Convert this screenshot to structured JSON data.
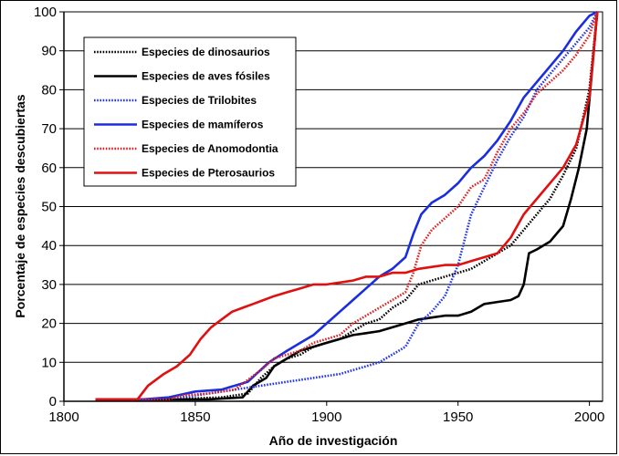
{
  "chart_data": {
    "type": "line",
    "title": "",
    "xlabel": "Año de investigación",
    "ylabel": "Porcentaje de especies descubiertas",
    "xlim": [
      1800,
      2005
    ],
    "ylim": [
      0,
      100
    ],
    "x_ticks": [
      1800,
      1850,
      1900,
      1950,
      2000
    ],
    "y_ticks": [
      0,
      10,
      20,
      30,
      40,
      50,
      60,
      70,
      80,
      90,
      100
    ],
    "grid": "horizontal",
    "legend_position": "top-left",
    "series": [
      {
        "name": "Especies de dinosaurios",
        "color": "#000000",
        "style": "dotted",
        "points": [
          [
            1812,
            0.5
          ],
          [
            1840,
            0.5
          ],
          [
            1860,
            1
          ],
          [
            1870,
            2
          ],
          [
            1875,
            6
          ],
          [
            1880,
            9
          ],
          [
            1885,
            11
          ],
          [
            1890,
            12
          ],
          [
            1895,
            14
          ],
          [
            1900,
            15
          ],
          [
            1905,
            16
          ],
          [
            1910,
            18
          ],
          [
            1915,
            20
          ],
          [
            1920,
            21
          ],
          [
            1925,
            24
          ],
          [
            1930,
            26
          ],
          [
            1935,
            30
          ],
          [
            1940,
            31
          ],
          [
            1945,
            32
          ],
          [
            1950,
            33
          ],
          [
            1955,
            34
          ],
          [
            1960,
            36
          ],
          [
            1965,
            38
          ],
          [
            1970,
            40
          ],
          [
            1975,
            44
          ],
          [
            1980,
            48
          ],
          [
            1985,
            52
          ],
          [
            1990,
            58
          ],
          [
            1995,
            65
          ],
          [
            2000,
            80
          ],
          [
            2003,
            100
          ]
        ]
      },
      {
        "name": "Especies de aves fósiles",
        "color": "#000000",
        "style": "solid",
        "points": [
          [
            1812,
            0.5
          ],
          [
            1840,
            0.5
          ],
          [
            1855,
            0.5
          ],
          [
            1868,
            1
          ],
          [
            1872,
            4
          ],
          [
            1877,
            6
          ],
          [
            1880,
            9
          ],
          [
            1885,
            11
          ],
          [
            1890,
            13
          ],
          [
            1895,
            14
          ],
          [
            1900,
            15
          ],
          [
            1905,
            16
          ],
          [
            1910,
            17
          ],
          [
            1915,
            17.5
          ],
          [
            1920,
            18
          ],
          [
            1925,
            19
          ],
          [
            1930,
            20
          ],
          [
            1935,
            21
          ],
          [
            1940,
            21.5
          ],
          [
            1945,
            22
          ],
          [
            1950,
            22
          ],
          [
            1955,
            23
          ],
          [
            1960,
            25
          ],
          [
            1965,
            25.5
          ],
          [
            1970,
            26
          ],
          [
            1973,
            27
          ],
          [
            1975,
            30
          ],
          [
            1977,
            38
          ],
          [
            1980,
            39
          ],
          [
            1985,
            41
          ],
          [
            1990,
            45
          ],
          [
            1993,
            52
          ],
          [
            1996,
            60
          ],
          [
            1999,
            70
          ],
          [
            2001,
            85
          ],
          [
            2003,
            100
          ]
        ]
      },
      {
        "name": "Especies de Trilobites",
        "color": "#2233ee",
        "style": "dotted",
        "points": [
          [
            1812,
            0.5
          ],
          [
            1835,
            0.5
          ],
          [
            1845,
            1
          ],
          [
            1855,
            2
          ],
          [
            1865,
            3
          ],
          [
            1875,
            4
          ],
          [
            1885,
            5
          ],
          [
            1895,
            6
          ],
          [
            1905,
            7
          ],
          [
            1915,
            9
          ],
          [
            1920,
            10
          ],
          [
            1925,
            12
          ],
          [
            1930,
            14
          ],
          [
            1935,
            20
          ],
          [
            1940,
            23
          ],
          [
            1945,
            27
          ],
          [
            1950,
            35
          ],
          [
            1955,
            48
          ],
          [
            1960,
            55
          ],
          [
            1965,
            62
          ],
          [
            1970,
            68
          ],
          [
            1975,
            73
          ],
          [
            1980,
            80
          ],
          [
            1985,
            84
          ],
          [
            1990,
            88
          ],
          [
            1995,
            92
          ],
          [
            2000,
            96
          ],
          [
            2003,
            100
          ]
        ]
      },
      {
        "name": "Especies de mamíferos",
        "color": "#1a2ee0",
        "style": "solid",
        "points": [
          [
            1812,
            0.5
          ],
          [
            1830,
            0.5
          ],
          [
            1840,
            1
          ],
          [
            1850,
            2.5
          ],
          [
            1860,
            3
          ],
          [
            1870,
            5
          ],
          [
            1878,
            10
          ],
          [
            1885,
            13
          ],
          [
            1890,
            15
          ],
          [
            1895,
            17
          ],
          [
            1900,
            20
          ],
          [
            1905,
            23
          ],
          [
            1910,
            26
          ],
          [
            1915,
            29
          ],
          [
            1920,
            32
          ],
          [
            1925,
            34
          ],
          [
            1930,
            37
          ],
          [
            1933,
            43
          ],
          [
            1936,
            48
          ],
          [
            1940,
            51
          ],
          [
            1945,
            53
          ],
          [
            1950,
            56
          ],
          [
            1955,
            60
          ],
          [
            1960,
            63
          ],
          [
            1965,
            67
          ],
          [
            1970,
            72
          ],
          [
            1975,
            78
          ],
          [
            1980,
            82
          ],
          [
            1985,
            86
          ],
          [
            1990,
            90
          ],
          [
            1995,
            95
          ],
          [
            2000,
            99
          ],
          [
            2003,
            100
          ]
        ]
      },
      {
        "name": "Especies de Anomodontia",
        "color": "#e02020",
        "style": "dotted",
        "points": [
          [
            1812,
            0.5
          ],
          [
            1840,
            0.5
          ],
          [
            1845,
            1.5
          ],
          [
            1855,
            2
          ],
          [
            1865,
            3
          ],
          [
            1875,
            8
          ],
          [
            1880,
            11
          ],
          [
            1885,
            12
          ],
          [
            1890,
            13
          ],
          [
            1895,
            15
          ],
          [
            1900,
            16
          ],
          [
            1905,
            17
          ],
          [
            1910,
            20
          ],
          [
            1915,
            22
          ],
          [
            1920,
            24
          ],
          [
            1925,
            26
          ],
          [
            1930,
            28
          ],
          [
            1933,
            33
          ],
          [
            1936,
            40
          ],
          [
            1940,
            44
          ],
          [
            1945,
            47
          ],
          [
            1950,
            50
          ],
          [
            1955,
            55
          ],
          [
            1960,
            57
          ],
          [
            1965,
            64
          ],
          [
            1970,
            70
          ],
          [
            1975,
            74
          ],
          [
            1980,
            79
          ],
          [
            1985,
            82
          ],
          [
            1990,
            85
          ],
          [
            1995,
            89
          ],
          [
            2000,
            94
          ],
          [
            2003,
            100
          ]
        ]
      },
      {
        "name": "Especies de Pterosaurios",
        "color": "#e01010",
        "style": "solid",
        "points": [
          [
            1812,
            0.5
          ],
          [
            1828,
            0.5
          ],
          [
            1832,
            4
          ],
          [
            1838,
            7
          ],
          [
            1843,
            9
          ],
          [
            1848,
            12
          ],
          [
            1852,
            16
          ],
          [
            1856,
            19
          ],
          [
            1860,
            21
          ],
          [
            1864,
            23
          ],
          [
            1868,
            24
          ],
          [
            1872,
            25
          ],
          [
            1876,
            26
          ],
          [
            1880,
            27
          ],
          [
            1885,
            28
          ],
          [
            1890,
            29
          ],
          [
            1895,
            30
          ],
          [
            1900,
            30
          ],
          [
            1910,
            31
          ],
          [
            1915,
            32
          ],
          [
            1920,
            32
          ],
          [
            1925,
            33
          ],
          [
            1930,
            33
          ],
          [
            1935,
            34
          ],
          [
            1940,
            34.5
          ],
          [
            1945,
            35
          ],
          [
            1950,
            35
          ],
          [
            1955,
            36
          ],
          [
            1960,
            37
          ],
          [
            1965,
            38
          ],
          [
            1970,
            42
          ],
          [
            1975,
            48
          ],
          [
            1980,
            52
          ],
          [
            1985,
            56
          ],
          [
            1990,
            60
          ],
          [
            1995,
            66
          ],
          [
            2000,
            78
          ],
          [
            2003,
            100
          ]
        ]
      }
    ]
  }
}
